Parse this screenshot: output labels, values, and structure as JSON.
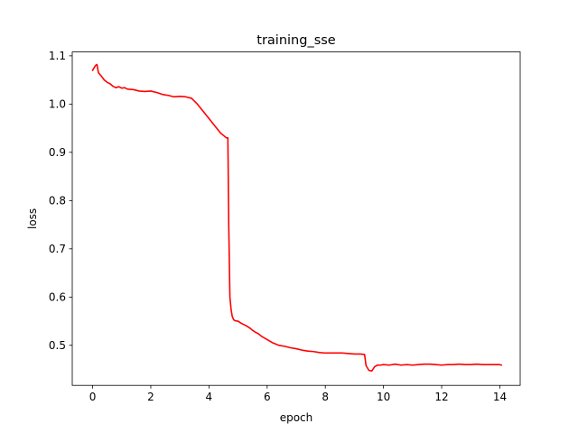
{
  "chart_data": {
    "type": "line",
    "title": "training_sse",
    "xlabel": "epoch",
    "ylabel": "loss",
    "xlim": [
      -0.7,
      14.7
    ],
    "ylim": [
      0.417,
      1.108
    ],
    "xticks": [
      0,
      2,
      4,
      6,
      8,
      10,
      12,
      14
    ],
    "yticks": [
      0.5,
      0.6,
      0.7,
      0.8,
      0.9,
      1.0,
      1.1
    ],
    "xtick_labels": [
      "0",
      "2",
      "4",
      "6",
      "8",
      "10",
      "12",
      "14"
    ],
    "ytick_labels": [
      "0.5",
      "0.6",
      "0.7",
      "0.8",
      "0.9",
      "1.0",
      "1.1"
    ],
    "grid": false,
    "legend": "none",
    "series": [
      {
        "color": "#ff0000",
        "x": [
          0.0,
          0.1,
          0.15,
          0.2,
          0.3,
          0.4,
          0.5,
          0.6,
          0.7,
          0.8,
          0.9,
          1.0,
          1.1,
          1.2,
          1.4,
          1.6,
          1.8,
          2.0,
          2.2,
          2.4,
          2.6,
          2.8,
          3.0,
          3.2,
          3.4,
          3.6,
          3.8,
          4.0,
          4.2,
          4.4,
          4.6,
          4.65,
          4.68,
          4.72,
          4.76,
          4.8,
          4.85,
          4.9,
          5.0,
          5.1,
          5.2,
          5.3,
          5.4,
          5.5,
          5.6,
          5.7,
          5.8,
          6.0,
          6.2,
          6.4,
          6.6,
          6.8,
          7.0,
          7.2,
          7.4,
          7.6,
          7.8,
          8.0,
          8.2,
          8.4,
          8.6,
          8.8,
          9.0,
          9.2,
          9.35,
          9.4,
          9.5,
          9.6,
          9.7,
          9.8,
          9.9,
          10.0,
          10.2,
          10.4,
          10.6,
          10.8,
          11.0,
          11.2,
          11.4,
          11.6,
          11.8,
          12.0,
          12.2,
          12.4,
          12.6,
          12.8,
          13.0,
          13.2,
          13.4,
          13.6,
          13.8,
          14.0,
          14.05
        ],
        "y": [
          1.07,
          1.08,
          1.082,
          1.065,
          1.058,
          1.05,
          1.045,
          1.042,
          1.037,
          1.034,
          1.036,
          1.033,
          1.034,
          1.031,
          1.03,
          1.027,
          1.026,
          1.027,
          1.024,
          1.02,
          1.018,
          1.015,
          1.016,
          1.015,
          1.012,
          1.0,
          0.985,
          0.97,
          0.955,
          0.94,
          0.93,
          0.93,
          0.75,
          0.6,
          0.575,
          0.56,
          0.553,
          0.551,
          0.55,
          0.546,
          0.543,
          0.54,
          0.536,
          0.531,
          0.527,
          0.524,
          0.519,
          0.512,
          0.505,
          0.5,
          0.498,
          0.495,
          0.493,
          0.49,
          0.488,
          0.487,
          0.485,
          0.484,
          0.484,
          0.484,
          0.484,
          0.483,
          0.482,
          0.482,
          0.481,
          0.458,
          0.448,
          0.447,
          0.456,
          0.459,
          0.459,
          0.46,
          0.459,
          0.461,
          0.459,
          0.46,
          0.459,
          0.46,
          0.461,
          0.461,
          0.46,
          0.459,
          0.46,
          0.46,
          0.461,
          0.46,
          0.46,
          0.461,
          0.46,
          0.46,
          0.46,
          0.46,
          0.459
        ]
      }
    ]
  }
}
